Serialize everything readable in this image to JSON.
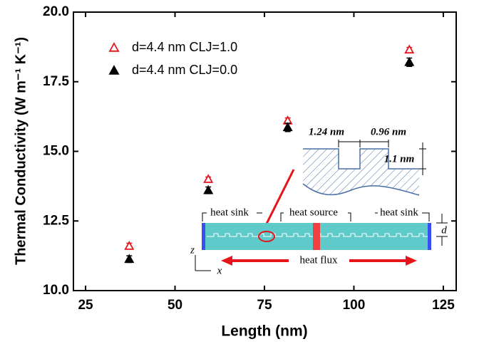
{
  "chart_data": {
    "type": "scatter",
    "x_label": "Length (nm)",
    "y_label": "Thermal Conductivity (W m⁻¹ K⁻¹)",
    "xlim": [
      21.6,
      128.6
    ],
    "ylim": [
      10,
      20
    ],
    "xticks": [
      25,
      50,
      75,
      100,
      125
    ],
    "yticks": [
      {
        "value": 10,
        "label": "10.0"
      },
      12.5,
      {
        "value": 15,
        "label": "15.0"
      },
      17.5,
      {
        "value": 20,
        "label": "20.0"
      }
    ],
    "series": [
      {
        "name": "d=4.4 nm  CLJ=1.0",
        "color": "#e8141c",
        "marker": "open-triangle",
        "x": [
          37.2,
          59.3,
          81.5,
          115.5
        ],
        "values": [
          11.6,
          14.0,
          16.1,
          18.65
        ],
        "errors": [
          0.1,
          0.08,
          0.1,
          0.08
        ]
      },
      {
        "name": "d=4.4 nm  CLJ=0.0",
        "color": "#000000",
        "marker": "filled-triangle",
        "x": [
          37.2,
          59.3,
          81.5,
          115.5
        ],
        "values": [
          11.13,
          13.6,
          15.86,
          18.2
        ],
        "errors": [
          0.12,
          0.12,
          0.15,
          0.15
        ]
      }
    ],
    "annotations": [
      "1.24 nm",
      "0.96 nm",
      "1.1 nm",
      "heat sink",
      "heat source",
      "heat sink",
      "d",
      "z",
      "x",
      "heat flux"
    ]
  }
}
